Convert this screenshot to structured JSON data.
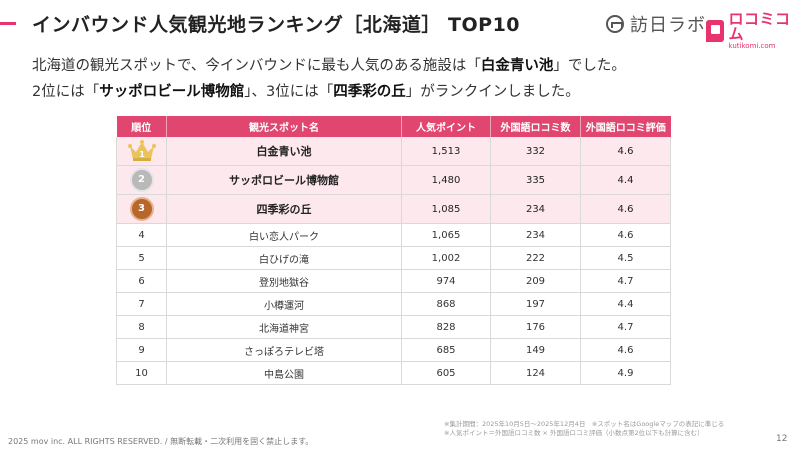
{
  "header": {
    "title": "インバウンド人気観光地ランキング［北海道］ TOP10",
    "logo_hono_text": "訪日ラボ",
    "logo_kuchi_jp": "ロコミコム",
    "logo_kuchi_en": "kutikomi.com"
  },
  "intro": {
    "l1_a": "北海道の観光スポットで、今インバウンドに最も人気のある施設は「",
    "l1_b": "白金青い池",
    "l1_c": "」でした。",
    "l2_a": "2位には「",
    "l2_b": "サッポロビール博物館",
    "l2_c": "」、3位には「",
    "l2_d": "四季彩の丘",
    "l2_e": "」がランクインしました。"
  },
  "table": {
    "headers": [
      "順位",
      "観光スポット名",
      "人気ポイント",
      "外国語ロコミ数",
      "外国語ロコミ評価"
    ],
    "rows": [
      {
        "rank": "1",
        "name": "白金青い池",
        "points": "1,513",
        "reviews": "332",
        "rating": "4.6"
      },
      {
        "rank": "2",
        "name": "サッポロビール博物館",
        "points": "1,480",
        "reviews": "335",
        "rating": "4.4"
      },
      {
        "rank": "3",
        "name": "四季彩の丘",
        "points": "1,085",
        "reviews": "234",
        "rating": "4.6"
      },
      {
        "rank": "4",
        "name": "白い恋人パーク",
        "points": "1,065",
        "reviews": "234",
        "rating": "4.6"
      },
      {
        "rank": "5",
        "name": "白ひげの滝",
        "points": "1,002",
        "reviews": "222",
        "rating": "4.5"
      },
      {
        "rank": "6",
        "name": "登別地獄谷",
        "points": "974",
        "reviews": "209",
        "rating": "4.7"
      },
      {
        "rank": "7",
        "name": "小樽運河",
        "points": "868",
        "reviews": "197",
        "rating": "4.4"
      },
      {
        "rank": "8",
        "name": "北海道神宮",
        "points": "828",
        "reviews": "176",
        "rating": "4.7"
      },
      {
        "rank": "9",
        "name": "さっぽろテレビ塔",
        "points": "685",
        "reviews": "149",
        "rating": "4.6"
      },
      {
        "rank": "10",
        "name": "中島公園",
        "points": "605",
        "reviews": "124",
        "rating": "4.9"
      }
    ]
  },
  "notes": {
    "line1": "※集計期間：2025年10月5日〜2025年12月4日　※スポット名はGoogleマップの表記に準じる",
    "line2": "※人気ポイント＝外国語ロコミ数 × 外国語ロコミ評価（小数点第2位以下も計算に含む）"
  },
  "footer": {
    "copyright": "2025 mov inc. ALL RIGHTS RESERVED. / 無断転載・二次利用を固く禁止します。",
    "page": "12"
  },
  "colors": {
    "accent": "#e0466f",
    "top_row_bg": "#fde8ee",
    "gold": "#e8c45a",
    "silver": "#b9b9b9",
    "bronze": "#b8672c"
  }
}
